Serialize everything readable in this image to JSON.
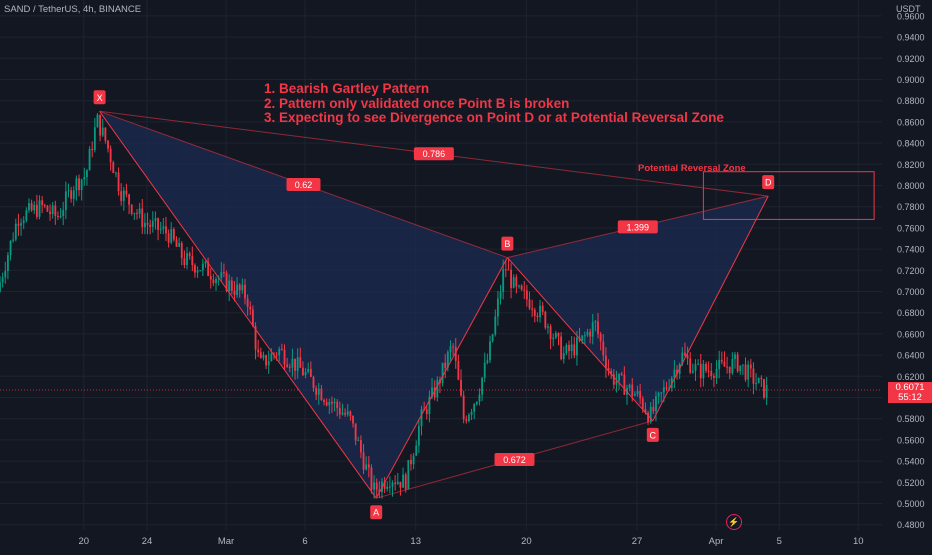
{
  "header": {
    "symbol_line": "SAND / TetherUS, 4h, BINANCE",
    "price_unit": "USDT"
  },
  "annotations": {
    "notes": [
      "1. Bearish Gartley Pattern",
      "2. Pattern only validated once Point B is broken",
      "3. Expecting to see Divergence on Point D or at Potential Reversal Zone"
    ],
    "zone_title": "Potential Reversal Zone"
  },
  "price_tag": {
    "value": "0.6071",
    "countdown": "55:12"
  },
  "colors": {
    "background": "#131722",
    "accent": "#f23645",
    "up_candle": "#089981",
    "down_candle": "#f23645",
    "pattern_fill": "#1c2b52",
    "axis_text": "#b2b5be"
  },
  "icons": {
    "replay": "lightning-bolt-icon"
  },
  "chart_data": {
    "type": "candlestick",
    "symbol": "SAND / TetherUS",
    "interval": "4h",
    "exchange": "BINANCE",
    "y_axis": {
      "ticks": [
        "0.4800",
        "0.5000",
        "0.5200",
        "0.5400",
        "0.5600",
        "0.5800",
        "0.6000",
        "0.6200",
        "0.6400",
        "0.6600",
        "0.6800",
        "0.7000",
        "0.7200",
        "0.7400",
        "0.7600",
        "0.7800",
        "0.8000",
        "0.8200",
        "0.8400",
        "0.8600",
        "0.8800",
        "0.9000",
        "0.9200",
        "0.9400",
        "0.9600"
      ],
      "ylim": [
        0.475,
        0.975
      ]
    },
    "x_axis": {
      "ticks": [
        "20",
        "24",
        "Mar",
        "6",
        "13",
        "20",
        "27",
        "Apr",
        "5",
        "10"
      ],
      "tick_days": [
        20,
        24,
        29,
        34,
        41,
        48,
        55,
        60,
        64,
        69
      ],
      "xlim": [
        14.7,
        70.5
      ]
    },
    "current_price": 0.6071,
    "pattern": {
      "name": "Bearish Gartley",
      "points": [
        {
          "label": "X",
          "day": 21.0,
          "price": 0.87
        },
        {
          "label": "A",
          "day": 38.5,
          "price": 0.505
        },
        {
          "label": "B",
          "day": 46.8,
          "price": 0.732
        },
        {
          "label": "C",
          "day": 56.0,
          "price": 0.578
        },
        {
          "label": "D",
          "day": 63.3,
          "price": 0.79
        }
      ],
      "ratios": [
        {
          "label": "0.62",
          "from": "X",
          "to": "B"
        },
        {
          "label": "0.786",
          "from": "X",
          "to": "D"
        },
        {
          "label": "1.399",
          "from": "B",
          "to": "D"
        },
        {
          "label": "0.672",
          "from": "A",
          "to": "C"
        }
      ]
    },
    "reversal_zone": {
      "day_start": 59.2,
      "day_end": 70.0,
      "price_low": 0.768,
      "price_high": 0.813
    },
    "price_path": [
      {
        "day": 14.7,
        "price": 0.7
      },
      {
        "day": 16.0,
        "price": 0.77
      },
      {
        "day": 17.5,
        "price": 0.78
      },
      {
        "day": 18.5,
        "price": 0.77
      },
      {
        "day": 19.5,
        "price": 0.8
      },
      {
        "day": 20.3,
        "price": 0.81
      },
      {
        "day": 21.0,
        "price": 0.862
      },
      {
        "day": 21.6,
        "price": 0.84
      },
      {
        "day": 22.5,
        "price": 0.795
      },
      {
        "day": 24.0,
        "price": 0.765
      },
      {
        "day": 25.5,
        "price": 0.755
      },
      {
        "day": 26.5,
        "price": 0.73
      },
      {
        "day": 28.0,
        "price": 0.72
      },
      {
        "day": 29.5,
        "price": 0.705
      },
      {
        "day": 30.5,
        "price": 0.695
      },
      {
        "day": 31.3,
        "price": 0.63
      },
      {
        "day": 32.5,
        "price": 0.645
      },
      {
        "day": 34.0,
        "price": 0.625
      },
      {
        "day": 35.5,
        "price": 0.6
      },
      {
        "day": 37.0,
        "price": 0.58
      },
      {
        "day": 38.5,
        "price": 0.512
      },
      {
        "day": 39.5,
        "price": 0.525
      },
      {
        "day": 40.5,
        "price": 0.52
      },
      {
        "day": 41.5,
        "price": 0.58
      },
      {
        "day": 42.5,
        "price": 0.61
      },
      {
        "day": 43.5,
        "price": 0.65
      },
      {
        "day": 44.2,
        "price": 0.58
      },
      {
        "day": 45.0,
        "price": 0.6
      },
      {
        "day": 45.8,
        "price": 0.64
      },
      {
        "day": 46.8,
        "price": 0.725
      },
      {
        "day": 47.5,
        "price": 0.7
      },
      {
        "day": 48.5,
        "price": 0.69
      },
      {
        "day": 49.5,
        "price": 0.67
      },
      {
        "day": 50.5,
        "price": 0.64
      },
      {
        "day": 51.5,
        "price": 0.65
      },
      {
        "day": 52.5,
        "price": 0.67
      },
      {
        "day": 53.5,
        "price": 0.62
      },
      {
        "day": 54.5,
        "price": 0.61
      },
      {
        "day": 55.3,
        "price": 0.6
      },
      {
        "day": 56.0,
        "price": 0.582
      },
      {
        "day": 57.0,
        "price": 0.61
      },
      {
        "day": 58.0,
        "price": 0.64
      },
      {
        "day": 59.0,
        "price": 0.625
      },
      {
        "day": 60.5,
        "price": 0.628
      },
      {
        "day": 61.5,
        "price": 0.633
      },
      {
        "day": 62.5,
        "price": 0.618
      },
      {
        "day": 63.2,
        "price": 0.607
      }
    ]
  }
}
